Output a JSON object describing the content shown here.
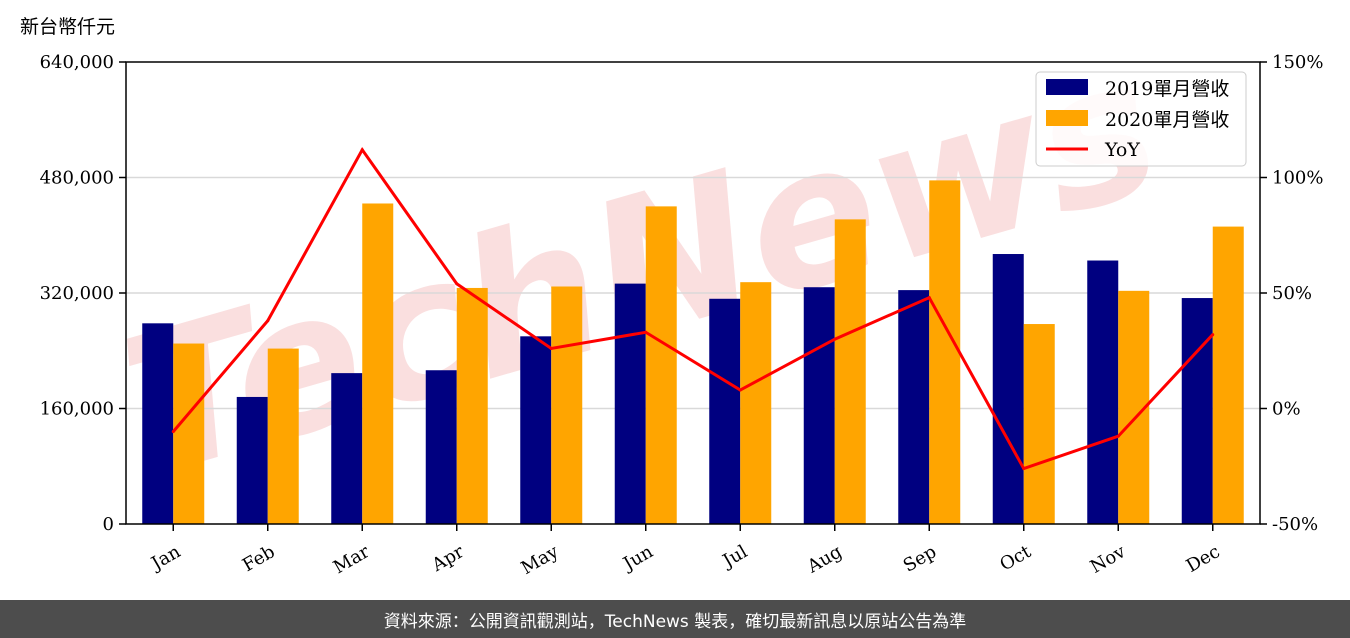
{
  "watermark": "TechNews",
  "footer_text": "資料來源：公開資訊觀測站，TechNews 製表，確切最新訊息以原站公告為準",
  "colors": {
    "series_2019": "#000080",
    "series_2020": "#FFA500",
    "yoy": "#FF0000",
    "footer_bg": "#4d4d4d"
  },
  "chart_data": {
    "type": "bar",
    "title": "",
    "ylabel": "新台幣仟元",
    "categories": [
      "Jan",
      "Feb",
      "Mar",
      "Apr",
      "May",
      "Jun",
      "Jul",
      "Aug",
      "Sep",
      "Oct",
      "Nov",
      "Dec"
    ],
    "series": [
      {
        "name": "2019單月營收",
        "type": "bar",
        "values": [
          278000,
          176000,
          209000,
          213000,
          260000,
          333000,
          312000,
          328000,
          324000,
          374000,
          365000,
          313000
        ]
      },
      {
        "name": "2020單月營收",
        "type": "bar",
        "values": [
          250000,
          243000,
          444000,
          327000,
          329000,
          440000,
          335000,
          422000,
          476000,
          277000,
          323000,
          412000
        ]
      },
      {
        "name": "YoY",
        "type": "line",
        "axis": "right",
        "values": [
          -10,
          38,
          112,
          54,
          26,
          33,
          8,
          30,
          48,
          -26,
          -12,
          32
        ]
      }
    ],
    "ylim": [
      0,
      640000
    ],
    "yticks": [
      0,
      160000,
      320000,
      480000,
      640000
    ],
    "ytick_labels": [
      "0",
      "160,000",
      "320,000",
      "480,000",
      "640,000"
    ],
    "y2lim": [
      -50,
      150
    ],
    "y2ticks": [
      -50,
      0,
      50,
      100,
      150
    ],
    "y2tick_labels": [
      "-50%",
      "0%",
      "50%",
      "100%",
      "150%"
    ],
    "grid": true,
    "legend_position": "top-right"
  }
}
